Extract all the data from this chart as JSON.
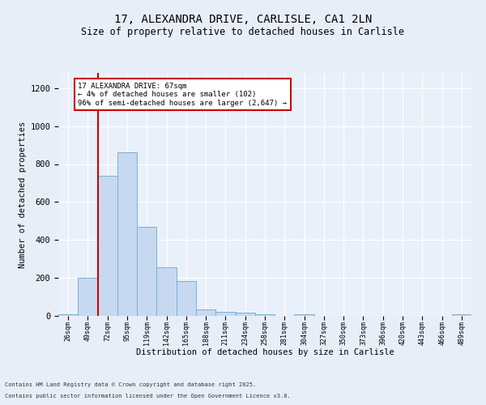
{
  "title1": "17, ALEXANDRA DRIVE, CARLISLE, CA1 2LN",
  "title2": "Size of property relative to detached houses in Carlisle",
  "xlabel": "Distribution of detached houses by size in Carlisle",
  "ylabel": "Number of detached properties",
  "bar_labels": [
    "26sqm",
    "49sqm",
    "72sqm",
    "95sqm",
    "119sqm",
    "142sqm",
    "165sqm",
    "188sqm",
    "211sqm",
    "234sqm",
    "258sqm",
    "281sqm",
    "304sqm",
    "327sqm",
    "350sqm",
    "373sqm",
    "396sqm",
    "420sqm",
    "443sqm",
    "466sqm",
    "489sqm"
  ],
  "bar_values": [
    10,
    200,
    740,
    860,
    470,
    255,
    183,
    35,
    22,
    18,
    10,
    0,
    10,
    0,
    0,
    0,
    0,
    0,
    0,
    0,
    10
  ],
  "bar_color": "#c6d9f0",
  "bar_edge_color": "#7bafd4",
  "vline_x_index": 1,
  "vline_color": "#cc0000",
  "annotation_text": "17 ALEXANDRA DRIVE: 67sqm\n← 4% of detached houses are smaller (102)\n96% of semi-detached houses are larger (2,647) →",
  "annotation_box_color": "#cc0000",
  "ylim": [
    0,
    1280
  ],
  "yticks": [
    0,
    200,
    400,
    600,
    800,
    1000,
    1200
  ],
  "footer1": "Contains HM Land Registry data © Crown copyright and database right 2025.",
  "footer2": "Contains public sector information licensed under the Open Government Licence v3.0.",
  "bg_color": "#e8eef8",
  "plot_bg_color": "#eaf0fa",
  "grid_color": "#ffffff",
  "title1_fontsize": 10,
  "title2_fontsize": 8.5,
  "ylabel_fontsize": 7.5,
  "xlabel_fontsize": 7.5,
  "ytick_fontsize": 7.5,
  "xtick_fontsize": 6,
  "footer_fontsize": 5,
  "annotation_fontsize": 6.5
}
